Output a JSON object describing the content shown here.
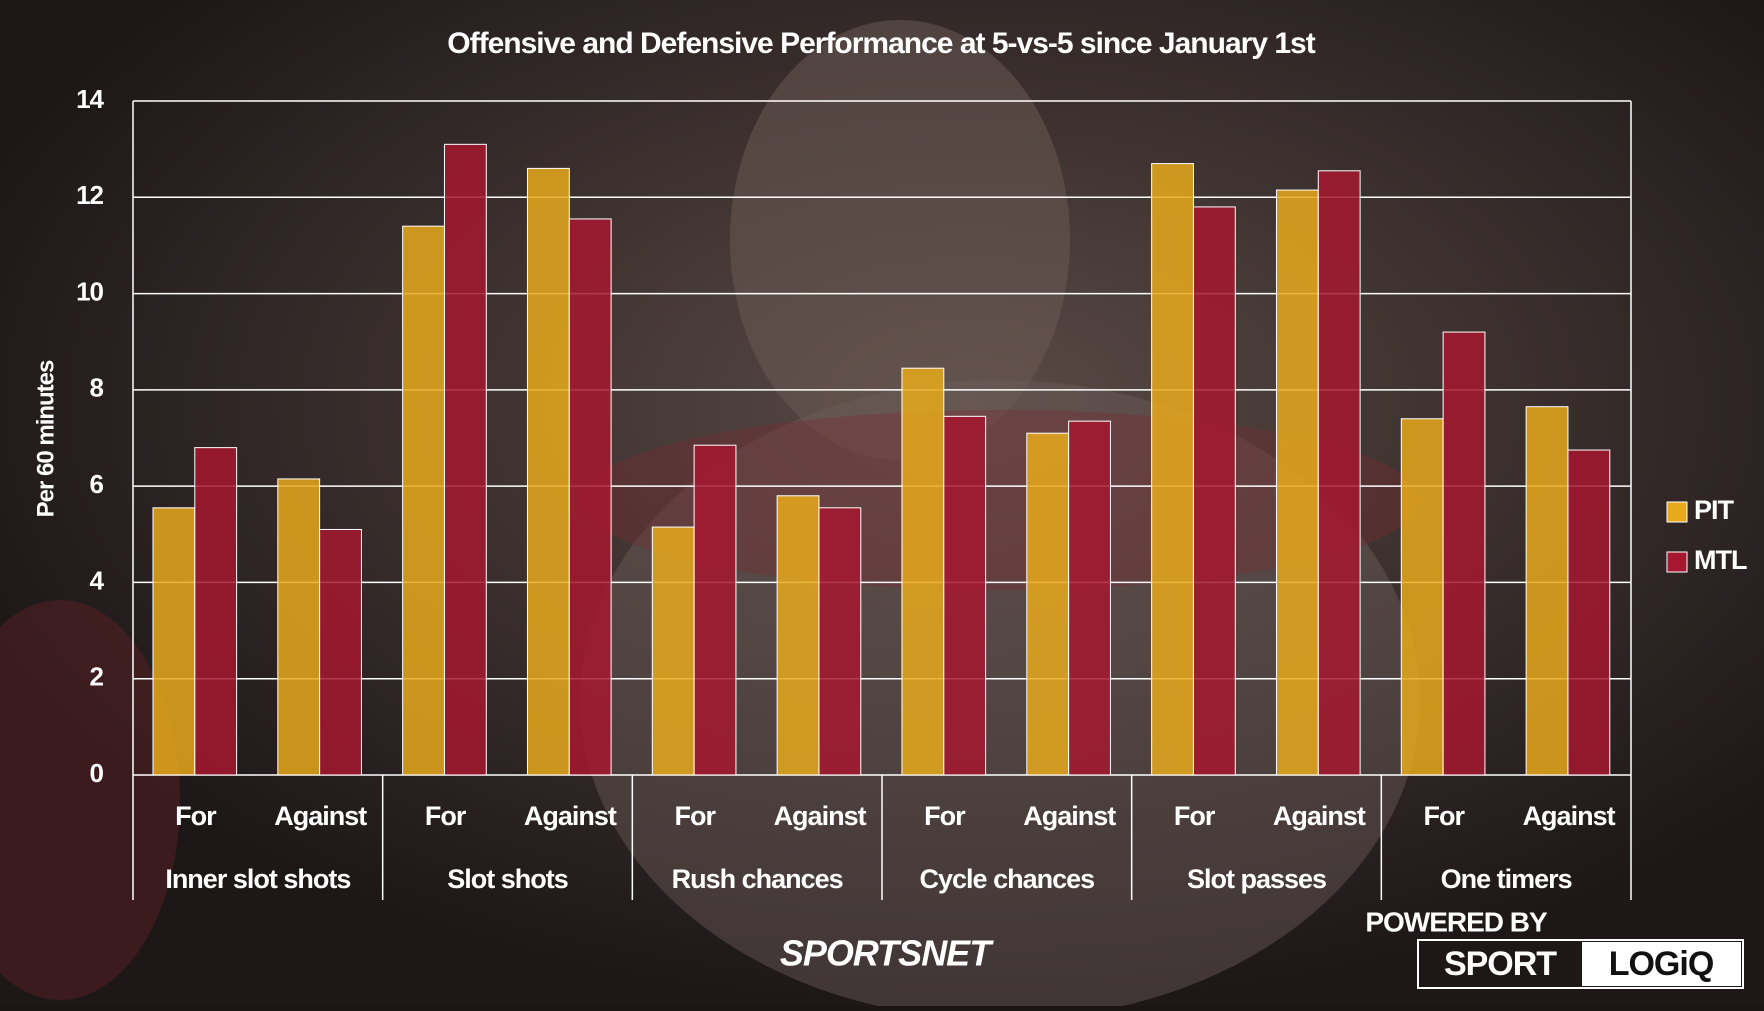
{
  "chart_data": {
    "type": "bar",
    "title": "Offensive and Defensive Performance at 5-vs-5 since January 1st",
    "y_label": "Per 60 minutes",
    "categories": [
      "For",
      "Against",
      "For",
      "Against",
      "For",
      "Against",
      "For",
      "Against",
      "For",
      "Against",
      "For",
      "Against"
    ],
    "groups": [
      "Inner slot shots",
      "Slot shots",
      "Rush chances",
      "Cycle chances",
      "Slot passes",
      "One timers"
    ],
    "series": [
      {
        "name": "PIT",
        "color": "#e8a91c",
        "values": [
          5.55,
          6.15,
          11.4,
          12.6,
          5.15,
          5.8,
          8.45,
          7.1,
          12.7,
          12.15,
          7.4,
          7.65
        ]
      },
      {
        "name": "MTL",
        "color": "#a6182f",
        "values": [
          6.8,
          5.1,
          13.1,
          11.55,
          6.85,
          5.55,
          7.45,
          7.35,
          11.8,
          12.55,
          9.2,
          6.75
        ]
      }
    ],
    "ylim": [
      0,
      14
    ],
    "yticks": [
      0,
      2,
      4,
      6,
      8,
      10,
      12,
      14
    ],
    "grid": true,
    "legend": "right",
    "branding": {
      "network": "SPORTSNET",
      "powered_by": "POWERED BY",
      "sport": "SPORT",
      "logiq": "LOGiQ"
    }
  }
}
